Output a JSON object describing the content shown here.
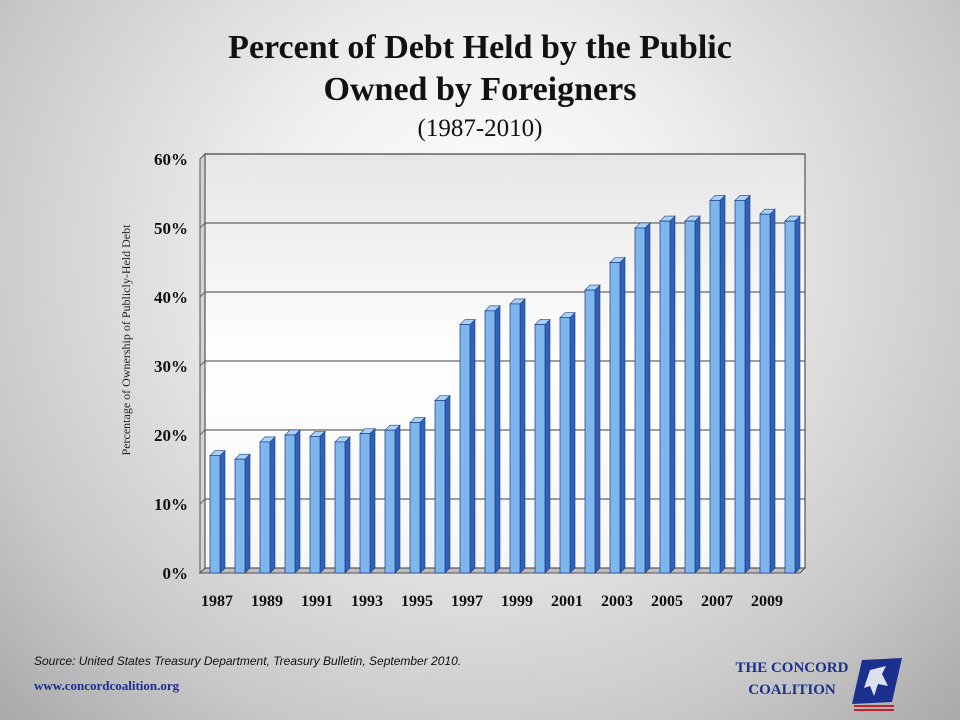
{
  "header": {
    "title_line1": "Percent of Debt Held by the Public",
    "title_line2": "Owned by Foreigners",
    "subtitle": "(1987-2010)"
  },
  "chart_data": {
    "type": "bar",
    "title": "Percent of Debt Held by the Public Owned by Foreigners",
    "subtitle": "(1987-2010)",
    "ylabel": "Percentage of Ownership of Publicly-Held Debt",
    "xlabel": "",
    "categories": [
      "1987",
      "1988",
      "1989",
      "1990",
      "1991",
      "1992",
      "1993",
      "1994",
      "1995",
      "1996",
      "1997",
      "1998",
      "1999",
      "2000",
      "2001",
      "2002",
      "2003",
      "2004",
      "2005",
      "2006",
      "2007",
      "2008",
      "2009",
      "2010"
    ],
    "values": [
      17,
      16.5,
      19,
      20,
      19.8,
      19,
      20.2,
      20.7,
      21.8,
      25,
      36,
      38,
      39,
      36,
      37,
      41,
      45,
      50,
      51,
      51,
      54,
      54,
      52,
      51
    ],
    "x_tick_labels": [
      "1987",
      "1989",
      "1991",
      "1993",
      "1995",
      "1997",
      "1999",
      "2001",
      "2003",
      "2005",
      "2007",
      "2009"
    ],
    "y_tick_labels": [
      "0%",
      "10%",
      "20%",
      "30%",
      "40%",
      "50%",
      "60%"
    ],
    "ylim": [
      0,
      60
    ],
    "grid": true,
    "bar_color": "#7fb6ee",
    "bar_side_color": "#2f62b8"
  },
  "footer": {
    "source": "Source: United States Treasury Department, Treasury Bulletin, September 2010.",
    "website": "www.concordcoalition.org",
    "logo_line1": "THE CONCORD",
    "logo_line2": "COALITION"
  }
}
